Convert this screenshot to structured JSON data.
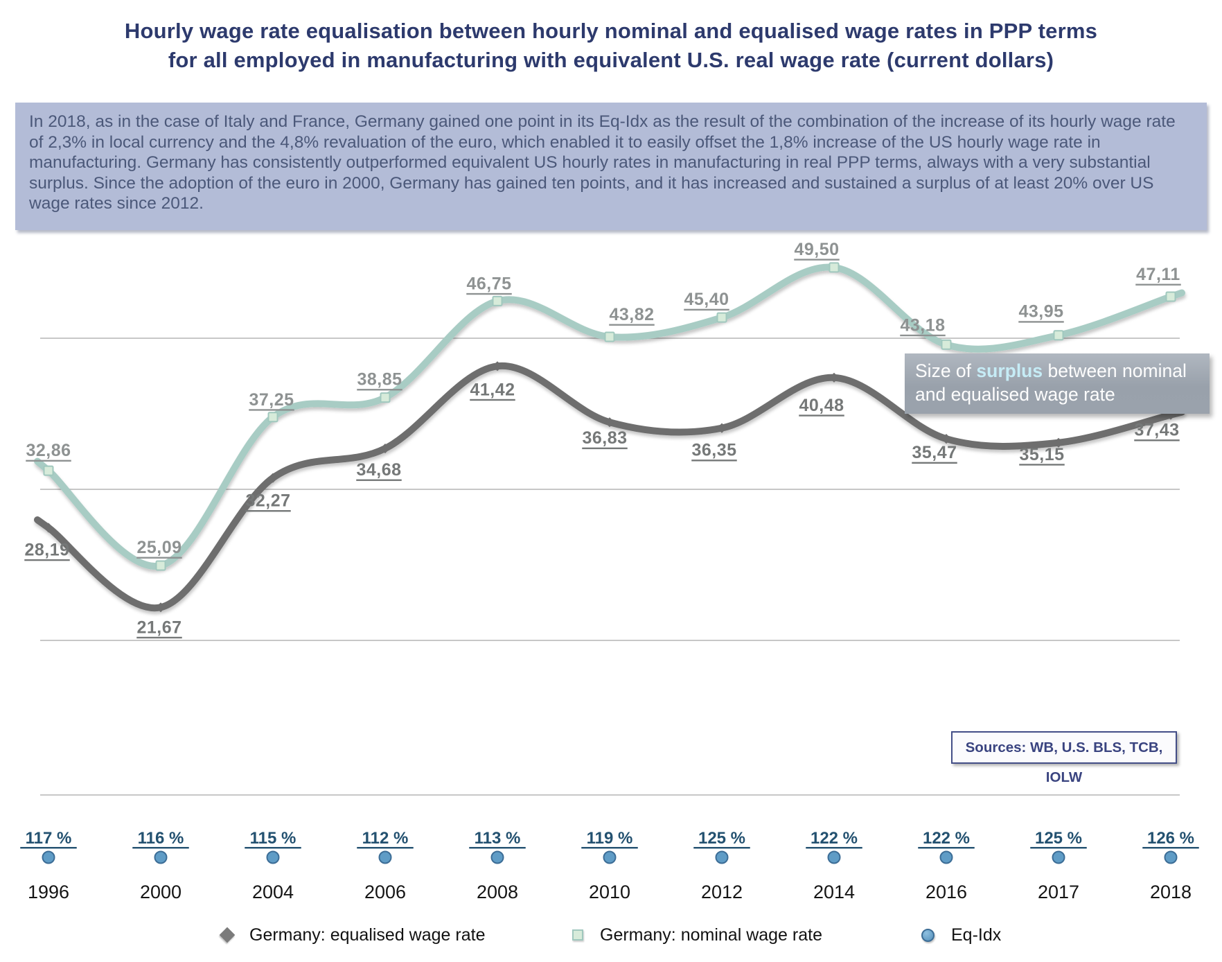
{
  "title": {
    "line1": "Hourly wage rate equalisation between hourly nominal and equalised wage rates in PPP terms",
    "line2": "for all employed in manufacturing with equivalent U.S. real wage rate (current dollars)"
  },
  "commentary": "In 2018, as in the case of Italy and France, Germany gained one point in its Eq-Idx as the result of the combination of the increase of its hourly wage rate of 2,3% in local currency and the 4,8% revaluation of the euro, which enabled it to easily offset the 1,8% increase of the US hourly wage rate in manufacturing. Germany has consistently outperformed equivalent US hourly rates in manufacturing in real PPP terms, always with a very substantial surplus. Since the adoption of the euro in 2000, Germany has gained ten points, and it has increased and sustained a surplus of at least 20% over US wage rates since 2012.",
  "annotation": {
    "pre": "Size of ",
    "highlight": "surplus",
    "post": " between nominal and equalised wage rate"
  },
  "sources": "Sources: WB, U.S. BLS, TCB, IOLW",
  "colors": {
    "title": "#2d3a6d",
    "gridline": "#c7c7c7",
    "nominal_label": "#8e9292",
    "equalised_label": "#757878",
    "pct_label": "#235170",
    "year_label": "#151515",
    "eqidx_dot_fill": "#5f9cc6",
    "eqidx_dot_stroke": "#3c6d96",
    "nominal_marker_fill": "#d7ebda",
    "nominal_marker_stroke": "#a0c8be"
  },
  "chart_data": {
    "type": "line",
    "categories": [
      "1996",
      "2000",
      "2004",
      "2006",
      "2008",
      "2010",
      "2012",
      "2014",
      "2016",
      "2017",
      "2018"
    ],
    "series": [
      {
        "name": "Germany: equalised wage rate",
        "marker": "diamond",
        "color": "#6e6e6e",
        "values": [
          28.19,
          21.67,
          32.27,
          34.68,
          41.42,
          36.83,
          36.35,
          40.48,
          35.47,
          35.15,
          37.43
        ],
        "labels": [
          "28,19",
          "21,67",
          "32,27",
          "34,68",
          "41,42",
          "36,83",
          "36,35",
          "40,48",
          "35,47",
          "35,15",
          "37,43"
        ]
      },
      {
        "name": "Germany: nominal wage rate",
        "marker": "square",
        "color": "#a8ccc4",
        "values": [
          32.86,
          25.09,
          37.25,
          38.85,
          46.75,
          43.82,
          45.4,
          49.5,
          43.18,
          43.95,
          47.11
        ],
        "labels": [
          "32,86",
          "25,09",
          "37,25",
          "38,85",
          "46,75",
          "43,82",
          "45,40",
          "49,50",
          "43,18",
          "43,95",
          "47,11"
        ]
      },
      {
        "name": "Eq-Idx",
        "marker": "circle",
        "color": "#8db1a9",
        "values": [
          117,
          116,
          115,
          112,
          113,
          119,
          125,
          122,
          122,
          125,
          126
        ],
        "labels": [
          "117 %",
          "116 %",
          "115 %",
          "112 %",
          "113 %",
          "119 %",
          "125 %",
          "122 %",
          "122 %",
          "125 %",
          "126 %"
        ]
      }
    ],
    "ylabel": "",
    "xlabel": "",
    "grid": true,
    "legend_position": "bottom"
  }
}
